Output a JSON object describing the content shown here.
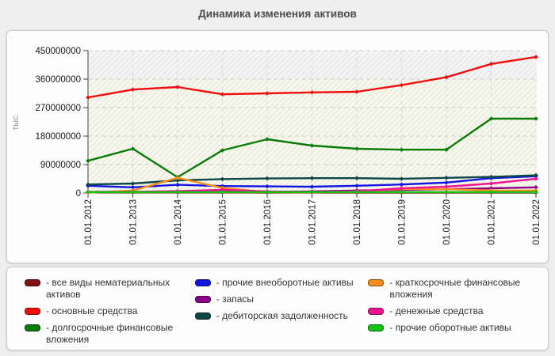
{
  "page_title": "Динамика изменения активов",
  "chart_data": {
    "type": "line",
    "title": "Динамика изменения активов",
    "xlabel": "",
    "ylabel": "тыс.",
    "ylim": [
      0,
      450000000
    ],
    "y_ticks": [
      0,
      90000000,
      180000000,
      270000000,
      360000000,
      450000000
    ],
    "grid": true,
    "legend_position": "bottom",
    "x": [
      "01.01.2012",
      "01.01.2013",
      "01.01.2014",
      "01.01.2015",
      "01.01.2016",
      "01.01.2017",
      "01.01.2018",
      "01.01.2019",
      "01.01.2020",
      "01.01.2021",
      "01.01.2022"
    ],
    "series": [
      {
        "key": "intangible_assets",
        "name": "все виды нематериальных активов",
        "color": "#7f1113",
        "values": [
          2000000,
          2000000,
          2000000,
          2000000,
          1500000,
          1500000,
          1500000,
          1500000,
          1500000,
          1500000,
          1500000
        ]
      },
      {
        "key": "fixed_assets",
        "name": "основные средства",
        "color": "#f20d0d",
        "values": [
          302000000,
          327000000,
          335000000,
          312000000,
          315000000,
          318000000,
          320000000,
          341000000,
          366000000,
          408000000,
          430000000
        ]
      },
      {
        "key": "long_term_investments",
        "name": "долгосрочные финансовые вложения",
        "color": "#077d07",
        "values": [
          102000000,
          140000000,
          50000000,
          135000000,
          170000000,
          150000000,
          140000000,
          137000000,
          137000000,
          235000000,
          235000000
        ]
      },
      {
        "key": "other_noncurrent_assets",
        "name": "прочие внеоборотные активы",
        "color": "#1414e0",
        "values": [
          23000000,
          18000000,
          26000000,
          22000000,
          21000000,
          20000000,
          23000000,
          27000000,
          33000000,
          47000000,
          53000000
        ]
      },
      {
        "key": "inventories",
        "name": "запасы",
        "color": "#8b008b",
        "values": [
          3000000,
          3000000,
          5000000,
          4000000,
          4000000,
          5000000,
          8000000,
          10000000,
          12000000,
          15000000,
          18000000
        ]
      },
      {
        "key": "receivables",
        "name": "дебиторская задолженность",
        "color": "#0d4747",
        "values": [
          27000000,
          30000000,
          40000000,
          44000000,
          46000000,
          47000000,
          47000000,
          45000000,
          48000000,
          51000000,
          56000000
        ]
      },
      {
        "key": "short_term_investments",
        "name": "краткосрочные финансовые вложения",
        "color": "#f78d1d",
        "values": [
          1000000,
          8000000,
          48000000,
          16000000,
          3000000,
          2000000,
          5000000,
          13000000,
          12000000,
          8000000,
          8000000
        ]
      },
      {
        "key": "cash",
        "name": "денежные средства",
        "color": "#f01391",
        "values": [
          4000000,
          4000000,
          6000000,
          10000000,
          5000000,
          3000000,
          5000000,
          15000000,
          20000000,
          30000000,
          45000000
        ]
      },
      {
        "key": "other_current_assets",
        "name": "прочие оборотные активы",
        "color": "#12c412",
        "values": [
          3000000,
          3000000,
          3000000,
          3000000,
          3000000,
          3000000,
          3000000,
          3000000,
          3000000,
          3000000,
          3000000
        ]
      }
    ]
  },
  "legend": {
    "separator": "- ",
    "columns": [
      [
        "intangible_assets",
        "fixed_assets",
        "long_term_investments"
      ],
      [
        "other_noncurrent_assets",
        "inventories",
        "receivables"
      ],
      [
        "short_term_investments",
        "cash",
        "other_current_assets"
      ]
    ]
  },
  "colors": {
    "page_bg": "#efefef",
    "panel_bg": "#fdfdfd",
    "panel_border": "#c9c9c9",
    "plot_bg": "#f8f8ea",
    "plot_band_top": "#f4f4f4",
    "hatch": "#e3e3e3",
    "grid_h": "#cccccc",
    "grid_v": "#dadada",
    "axis": "#444444",
    "tick_label": "#1a1a1a",
    "unit_label": "#999999",
    "title": "#4d4d4d",
    "legend_text": "#333333"
  }
}
